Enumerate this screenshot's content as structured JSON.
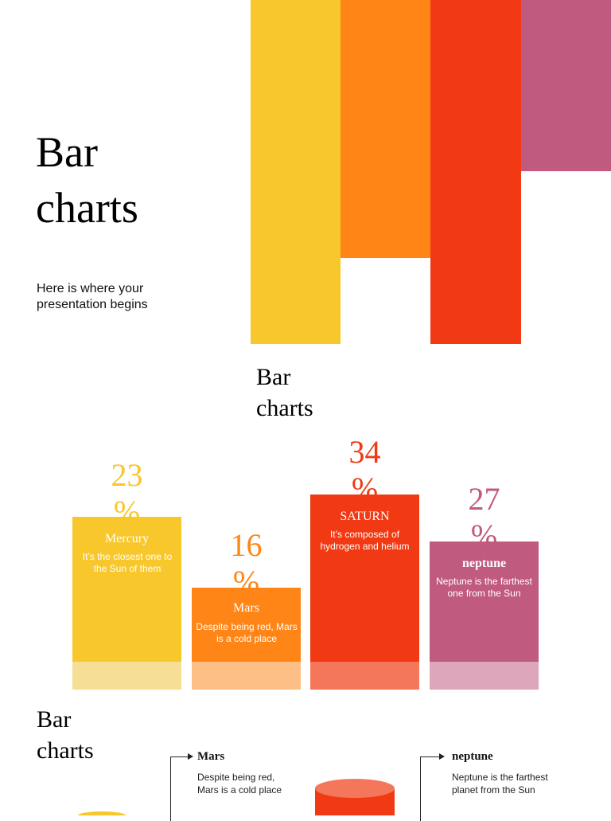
{
  "slide1": {
    "title": "Bar\ncharts",
    "subtitle": "Here is where your\npresentation begins",
    "decor_colors": [
      "#f8c72c",
      "#fe8516",
      "#f13a13",
      "#c05a7e"
    ]
  },
  "slide2": {
    "title": "Bar\ncharts",
    "bars": [
      {
        "percent_value": "23",
        "percent_sign": "%",
        "name": "Mercury",
        "desc": "It’s the closest one to the Sun of them",
        "color": "#f8c72c",
        "base_color": "#f6df94",
        "percent_color": "#f8c72c"
      },
      {
        "percent_value": "16",
        "percent_sign": "%",
        "name": "Mars",
        "desc": "Despite being red, Mars is a cold place",
        "color": "#fe8516",
        "base_color": "#febf86",
        "percent_color": "#fe8516"
      },
      {
        "percent_value": "34",
        "percent_sign": "%",
        "name": "SATURN",
        "desc": "It’s composed of hydrogen and helium",
        "color": "#f13a13",
        "base_color": "#f4775c",
        "percent_color": "#f13a13"
      },
      {
        "percent_value": "27",
        "percent_sign": "%",
        "name": "neptune",
        "desc": "Neptune is the farthest one from the Sun",
        "color": "#c05a7e",
        "base_color": "#dea6ba",
        "percent_color": "#c05a7e"
      }
    ]
  },
  "slide3": {
    "title": "Bar\ncharts",
    "callouts": [
      {
        "name": "Mars",
        "desc": "Despite being red,\nMars is a cold place"
      },
      {
        "name": "neptune",
        "desc": "Neptune is the farthest\nplanet from the Sun"
      }
    ],
    "cylinder_color": "#f13a13",
    "cylinder_top_color": "#f4775c",
    "yellow_color": "#f8c72c"
  },
  "chart_data": {
    "type": "bar",
    "categories": [
      "Mercury",
      "Mars",
      "SATURN",
      "neptune"
    ],
    "values": [
      23,
      16,
      34,
      27
    ],
    "unit": "%"
  }
}
